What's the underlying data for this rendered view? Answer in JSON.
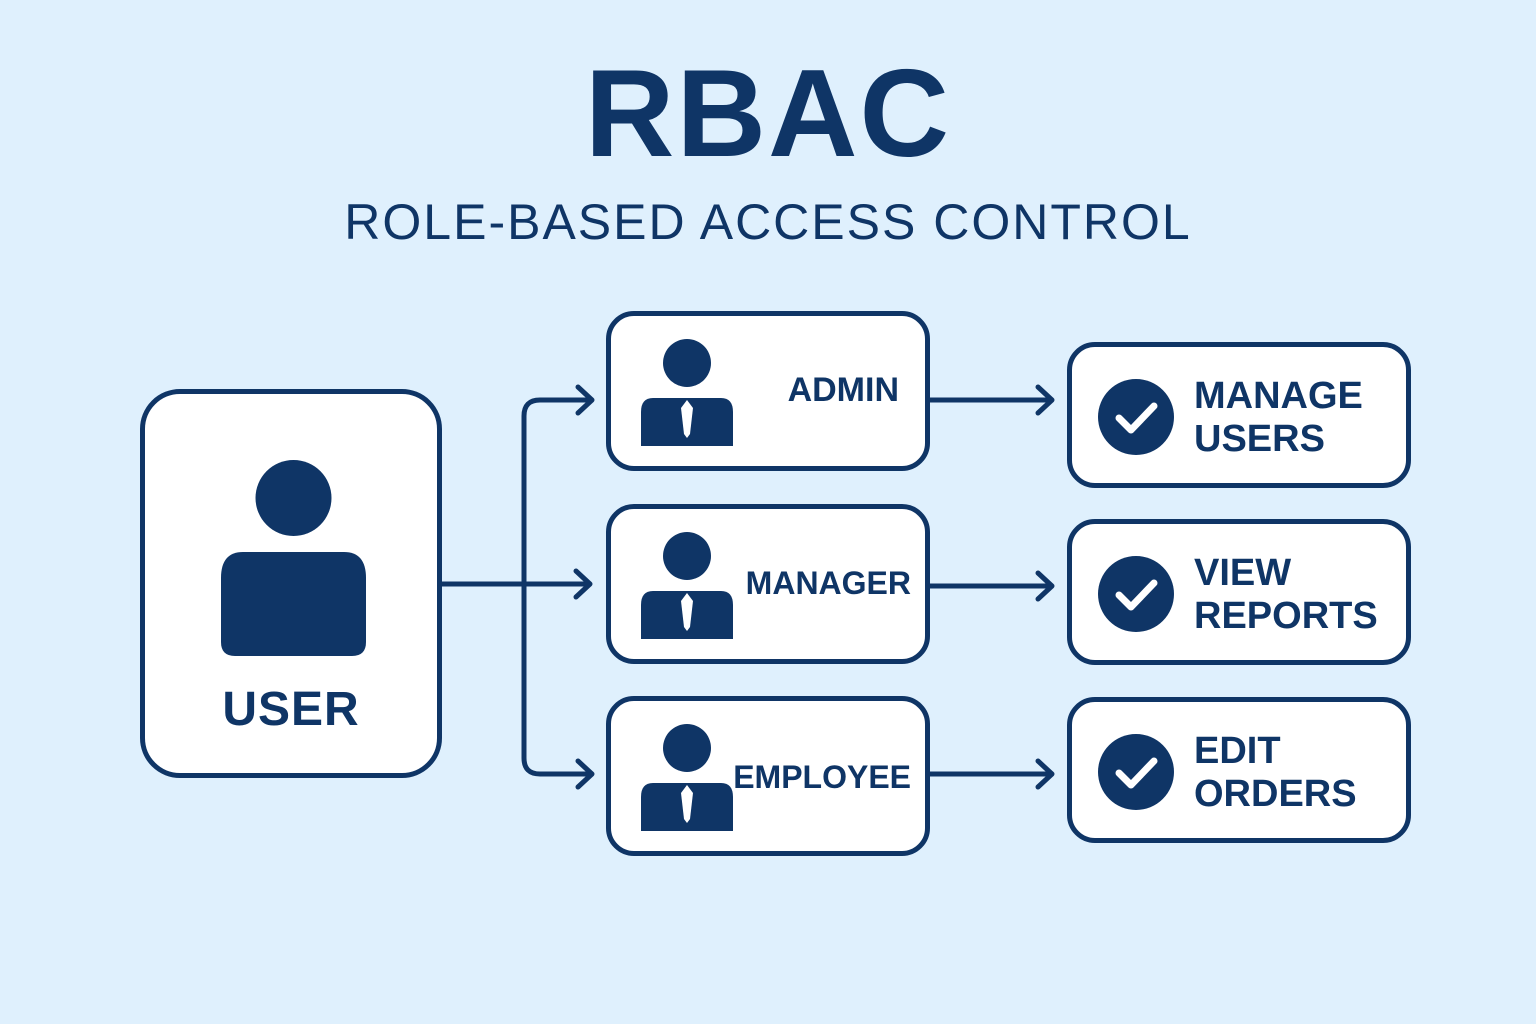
{
  "header": {
    "title": "RBAC",
    "subtitle": "ROLE-BASED ACCESS CONTROL"
  },
  "user": {
    "label": "USER",
    "icon": "user-icon"
  },
  "roles": [
    {
      "label": "ADMIN",
      "icon": "person-tie-icon"
    },
    {
      "label": "MANAGER",
      "icon": "person-tie-icon"
    },
    {
      "label": "EMPLOYEE",
      "icon": "person-tie-icon"
    }
  ],
  "permissions": [
    {
      "line1": "MANAGE",
      "line2": "USERS",
      "icon": "check-circle-icon"
    },
    {
      "line1": "VIEW",
      "line2": "REPORTS",
      "icon": "check-circle-icon"
    },
    {
      "line1": "EDIT",
      "line2": "ORDERS",
      "icon": "check-circle-icon"
    }
  ],
  "colors": {
    "background": "#dff0fd",
    "primary": "#0f3566",
    "card": "#ffffff"
  }
}
